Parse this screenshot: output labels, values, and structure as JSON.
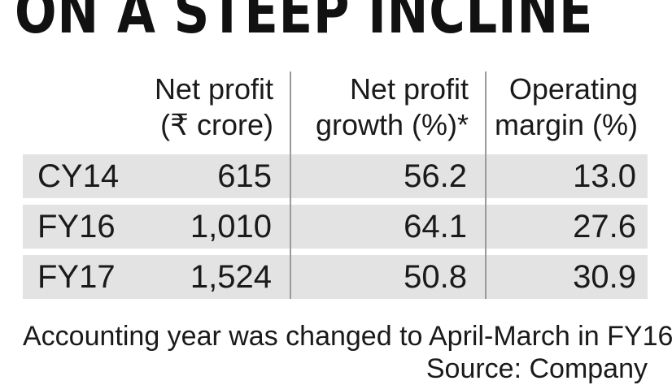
{
  "headline": "ON A STEEP INCLINE",
  "table": {
    "columns": [
      {
        "line1": "Net profit",
        "line2": "(₹ crore)"
      },
      {
        "line1": "Net profit",
        "line2": "growth (%)*"
      },
      {
        "line1": "Operating",
        "line2": "margin (%)"
      }
    ],
    "rows": [
      {
        "label": "CY14",
        "net_profit": "615",
        "growth": "56.2",
        "margin": "13.0"
      },
      {
        "label": "FY16",
        "net_profit": "1,010",
        "growth": "64.1",
        "margin": "27.6"
      },
      {
        "label": "FY17",
        "net_profit": "1,524",
        "growth": "50.8",
        "margin": "30.9"
      }
    ]
  },
  "footnote": "Accounting year was changed to April-March in FY16",
  "source": "Source: Company",
  "colors": {
    "row_background": "#e3e3e3",
    "divider": "#9a9a9a",
    "text": "#1a1a1a"
  }
}
